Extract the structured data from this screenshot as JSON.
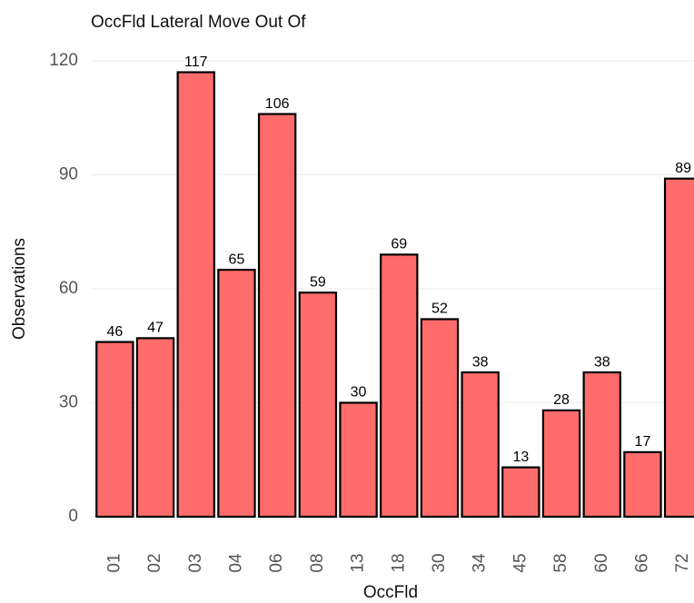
{
  "chart_data": {
    "type": "bar",
    "title": "OccFld Lateral Move Out Of",
    "x_label": "OccFld",
    "y_label": "Observations",
    "categories": [
      "01",
      "02",
      "03",
      "04",
      "06",
      "08",
      "13",
      "18",
      "30",
      "34",
      "45",
      "58",
      "60",
      "66",
      "72"
    ],
    "values": [
      46,
      47,
      117,
      65,
      106,
      59,
      30,
      69,
      52,
      38,
      13,
      28,
      38,
      17,
      89
    ],
    "color": "#ff6464",
    "ylim": [
      0,
      120
    ],
    "yticks": [
      0,
      30,
      60,
      90,
      120
    ],
    "grid": true
  }
}
